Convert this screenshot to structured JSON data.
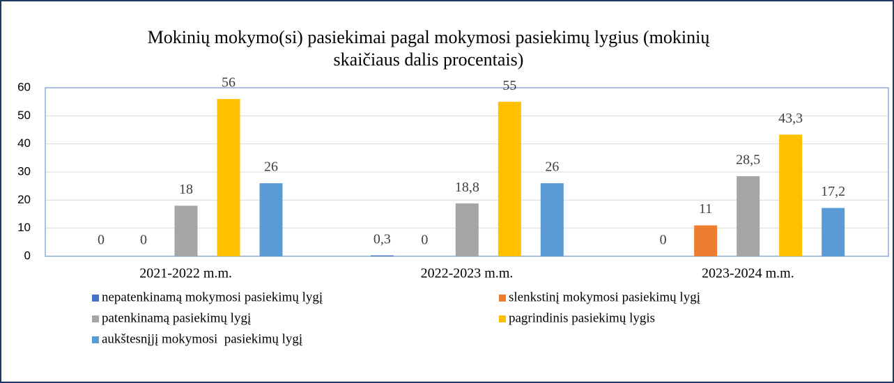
{
  "chart_data": {
    "type": "bar",
    "title": "Mokinių mokymo(si) pasiekimai pagal mokymosi pasiekimų lygius (mokinių skaičiaus dalis procentais)",
    "categories": [
      "2021-2022 m.m.",
      "2022-2023 m.m.",
      "2023-2024 m.m."
    ],
    "series": [
      {
        "name": "nepatenkinamą mokymosi pasiekimų lygį",
        "color": "#4472c4",
        "values": [
          0,
          0.3,
          0
        ],
        "value_labels": [
          "0",
          "0,3",
          "0"
        ]
      },
      {
        "name": "slenkstinį mokymosi pasiekimų lygį",
        "color": "#ed7d31",
        "values": [
          0,
          0,
          11
        ],
        "value_labels": [
          "0",
          "0",
          "11"
        ]
      },
      {
        "name": "patenkinamą pasiekimų lygį",
        "color": "#a5a5a5",
        "values": [
          18,
          18.8,
          28.5
        ],
        "value_labels": [
          "18",
          "18,8",
          "28,5"
        ]
      },
      {
        "name": "pagrindinis pasiekimų lygis",
        "color": "#ffc000",
        "values": [
          56,
          55,
          43.3
        ],
        "value_labels": [
          "56",
          "55",
          "43,3"
        ]
      },
      {
        "name": "aukštesnįjį mokymosi  pasiekimų lygį",
        "color": "#5b9bd5",
        "values": [
          26,
          26,
          17.2
        ],
        "value_labels": [
          "26",
          "26",
          "17,2"
        ]
      }
    ],
    "ylim": [
      0,
      60
    ],
    "yticks": [
      0,
      10,
      20,
      30,
      40,
      50,
      60
    ],
    "grid": true
  }
}
